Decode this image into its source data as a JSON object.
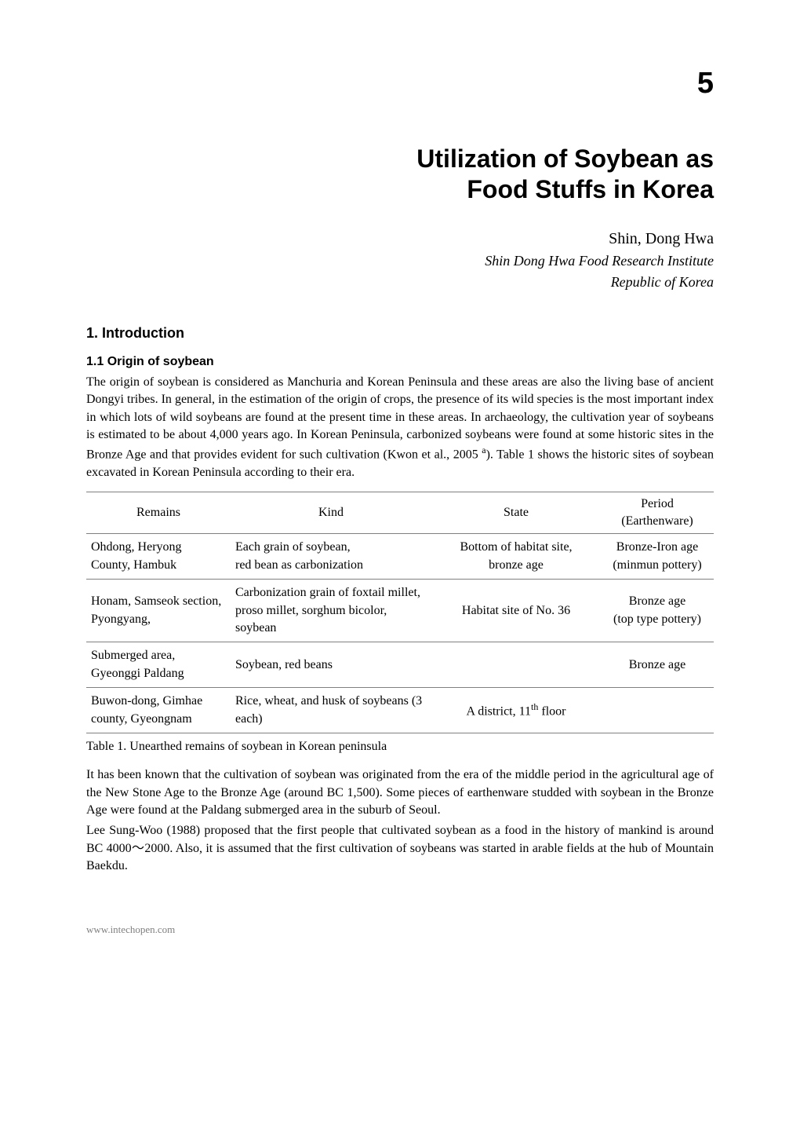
{
  "chapter_number": "5",
  "chapter_title_line1": "Utilization of Soybean as",
  "chapter_title_line2": "Food Stuffs in Korea",
  "author": "Shin, Dong Hwa",
  "affiliation": "Shin Dong Hwa Food Research Institute",
  "country": "Republic of Korea",
  "section1": {
    "heading": "1. Introduction",
    "sub1": {
      "heading": "1.1 Origin of soybean",
      "para1": "The origin of soybean is considered as Manchuria and Korean Peninsula and these areas are also the living base of ancient Dongyi tribes. In general, in the estimation of the origin of crops, the presence of its wild species is the most important index in which lots of wild soybeans are found at the present time in these areas. In archaeology, the cultivation year of soybeans is estimated to be about 4,000 years ago. In Korean Peninsula, carbonized soybeans were found at some historic sites in the Bronze Age and that provides evident for such cultivation (Kwon et al., 2005 ",
      "para1_sup": "a",
      "para1_end": "). Table 1 shows the historic sites of soybean excavated in Korean Peninsula according to their era."
    }
  },
  "table1": {
    "headers": {
      "c1": "Remains",
      "c2": "Kind",
      "c3": "State",
      "c4a": "Period",
      "c4b": "(Earthenware)"
    },
    "rows": [
      {
        "c1a": "Ohdong, Heryong",
        "c1b": "County, Hambuk",
        "c2a": "Each grain of soybean,",
        "c2b": "red bean as carbonization",
        "c3a": "Bottom of habitat site,",
        "c3b": "bronze age",
        "c4a": "Bronze-Iron age",
        "c4b": "(minmun pottery)"
      },
      {
        "c1": "Honam, Samseok section, Pyongyang,",
        "c2": "Carbonization grain of foxtail millet, proso millet, sorghum bicolor, soybean",
        "c3": "Habitat site of No. 36",
        "c4a": "Bronze age",
        "c4b": "(top type pottery)"
      },
      {
        "c1": "Submerged area, Gyeonggi Paldang",
        "c2": "Soybean, red beans",
        "c3": "",
        "c4": "Bronze age"
      },
      {
        "c1": "Buwon-dong, Gimhae county, Gyeongnam",
        "c2": "Rice, wheat, and husk of soybeans (3 each)",
        "c3_pre": "A district, 11",
        "c3_sup": "th",
        "c3_post": " floor",
        "c4": ""
      }
    ],
    "caption": "Table 1. Unearthed remains of soybean in Korean peninsula"
  },
  "after_table": {
    "para1": "It has been known that the cultivation of soybean was originated from the era of the middle period in the agricultural age of the New Stone Age to the Bronze Age (around BC 1,500). Some pieces of earthenware studded with soybean in the Bronze Age were found at the Paldang submerged area in the suburb of Seoul.",
    "para2": "Lee Sung-Woo (1988) proposed that the first people that cultivated soybean as a food in the history of mankind is around BC 4000～2000. Also, it is assumed that the first cultivation of soybeans was started in arable fields at the hub of Mountain Baekdu."
  },
  "footer": "www.intechopen.com"
}
